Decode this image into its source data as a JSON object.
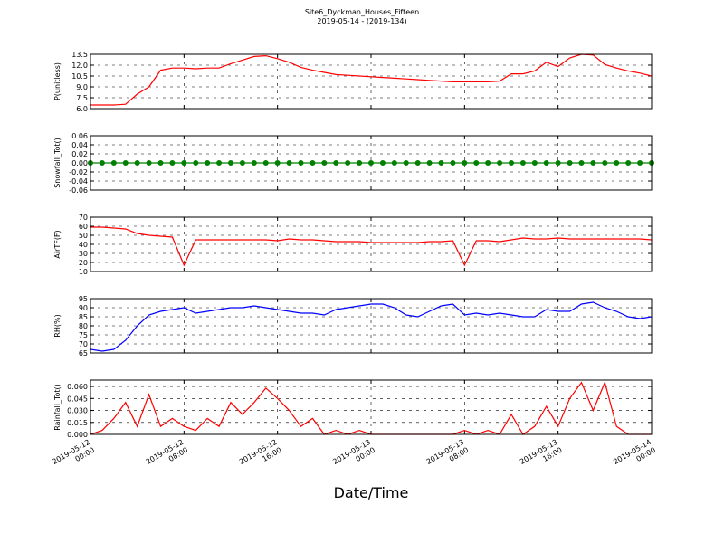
{
  "title": "Site6_Dyckman_Houses_Fifteen",
  "subtitle": "2019-05-14 - (2019-134)",
  "xlabel": "Date/Time",
  "chart_data": [
    {
      "type": "line",
      "ylabel": "P(unitless)",
      "grid": true,
      "xlim": [
        "2019-05-12 00:00",
        "2019-05-14 00:00"
      ],
      "xticks": [
        "2019-05-12 00:00",
        "2019-05-12 08:00",
        "2019-05-12 16:00",
        "2019-05-13 00:00",
        "2019-05-13 08:00",
        "2019-05-13 16:00",
        "2019-05-14 00:00"
      ],
      "ylim": [
        6,
        13.5
      ],
      "yticks": [
        {
          "value": 6,
          "label": "6.0"
        },
        {
          "value": 7.5,
          "label": "7.5"
        },
        {
          "value": 9,
          "label": "9.0"
        },
        {
          "value": 10.5,
          "label": "10.5"
        },
        {
          "value": 12,
          "label": "12.0"
        },
        {
          "value": 13.5,
          "label": "13.5"
        }
      ],
      "x": [
        "2019-05-12 00:00",
        "2019-05-12 01:00",
        "2019-05-12 02:00",
        "2019-05-12 03:00",
        "2019-05-12 04:00",
        "2019-05-12 05:00",
        "2019-05-12 06:00",
        "2019-05-12 07:00",
        "2019-05-12 08:00",
        "2019-05-12 09:00",
        "2019-05-12 10:00",
        "2019-05-12 11:00",
        "2019-05-12 12:00",
        "2019-05-12 13:00",
        "2019-05-12 14:00",
        "2019-05-12 15:00",
        "2019-05-12 16:00",
        "2019-05-12 17:00",
        "2019-05-12 18:00",
        "2019-05-12 19:00",
        "2019-05-12 20:00",
        "2019-05-12 21:00",
        "2019-05-12 22:00",
        "2019-05-12 23:00",
        "2019-05-13 00:00",
        "2019-05-13 01:00",
        "2019-05-13 02:00",
        "2019-05-13 03:00",
        "2019-05-13 04:00",
        "2019-05-13 05:00",
        "2019-05-13 06:00",
        "2019-05-13 07:00",
        "2019-05-13 08:00",
        "2019-05-13 09:00",
        "2019-05-13 10:00",
        "2019-05-13 11:00",
        "2019-05-13 12:00",
        "2019-05-13 13:00",
        "2019-05-13 14:00",
        "2019-05-13 15:00",
        "2019-05-13 16:00",
        "2019-05-13 17:00",
        "2019-05-13 18:00",
        "2019-05-13 19:00",
        "2019-05-13 20:00",
        "2019-05-13 21:00",
        "2019-05-13 22:00",
        "2019-05-13 23:00",
        "2019-05-14 00:00"
      ],
      "series": [
        {
          "color": "#ff0000",
          "values": [
            6.5,
            6.5,
            6.5,
            6.6,
            8.0,
            9.0,
            11.3,
            11.6,
            11.6,
            11.5,
            11.6,
            11.6,
            12.2,
            12.7,
            13.2,
            13.3,
            12.9,
            12.4,
            11.7,
            11.3,
            11.0,
            10.7,
            10.6,
            10.5,
            10.4,
            10.3,
            10.2,
            10.1,
            10.0,
            9.9,
            9.8,
            9.7,
            9.7,
            9.7,
            9.7,
            9.8,
            10.8,
            10.8,
            11.2,
            12.4,
            11.8,
            13.0,
            13.5,
            13.4,
            12.1,
            11.6,
            11.2,
            10.9,
            10.5
          ]
        }
      ]
    },
    {
      "type": "line",
      "ylabel": "Snowfall_Tot()",
      "grid": true,
      "xlim": [
        "2019-05-12 00:00",
        "2019-05-14 00:00"
      ],
      "xticks": [
        "2019-05-12 00:00",
        "2019-05-12 08:00",
        "2019-05-12 16:00",
        "2019-05-13 00:00",
        "2019-05-13 08:00",
        "2019-05-13 16:00",
        "2019-05-14 00:00"
      ],
      "ylim": [
        -0.06,
        0.06
      ],
      "yticks": [
        -0.06,
        -0.04,
        -0.02,
        {
          "value": 0,
          "label": "0.00"
        },
        0.02,
        0.04,
        0.06
      ],
      "x": [
        "2019-05-12 00:00",
        "2019-05-12 01:00",
        "2019-05-12 02:00",
        "2019-05-12 03:00",
        "2019-05-12 04:00",
        "2019-05-12 05:00",
        "2019-05-12 06:00",
        "2019-05-12 07:00",
        "2019-05-12 08:00",
        "2019-05-12 09:00",
        "2019-05-12 10:00",
        "2019-05-12 11:00",
        "2019-05-12 12:00",
        "2019-05-12 13:00",
        "2019-05-12 14:00",
        "2019-05-12 15:00",
        "2019-05-12 16:00",
        "2019-05-12 17:00",
        "2019-05-12 18:00",
        "2019-05-12 19:00",
        "2019-05-12 20:00",
        "2019-05-12 21:00",
        "2019-05-12 22:00",
        "2019-05-12 23:00",
        "2019-05-13 00:00",
        "2019-05-13 01:00",
        "2019-05-13 02:00",
        "2019-05-13 03:00",
        "2019-05-13 04:00",
        "2019-05-13 05:00",
        "2019-05-13 06:00",
        "2019-05-13 07:00",
        "2019-05-13 08:00",
        "2019-05-13 09:00",
        "2019-05-13 10:00",
        "2019-05-13 11:00",
        "2019-05-13 12:00",
        "2019-05-13 13:00",
        "2019-05-13 14:00",
        "2019-05-13 15:00",
        "2019-05-13 16:00",
        "2019-05-13 17:00",
        "2019-05-13 18:00",
        "2019-05-13 19:00",
        "2019-05-13 20:00",
        "2019-05-13 21:00",
        "2019-05-13 22:00",
        "2019-05-13 23:00",
        "2019-05-14 00:00"
      ],
      "series": [
        {
          "color": "#008000",
          "marker": true,
          "values": [
            0,
            0,
            0,
            0,
            0,
            0,
            0,
            0,
            0,
            0,
            0,
            0,
            0,
            0,
            0,
            0,
            0,
            0,
            0,
            0,
            0,
            0,
            0,
            0,
            0,
            0,
            0,
            0,
            0,
            0,
            0,
            0,
            0,
            0,
            0,
            0,
            0,
            0,
            0,
            0,
            0,
            0,
            0,
            0,
            0,
            0,
            0,
            0,
            0
          ]
        }
      ]
    },
    {
      "type": "line",
      "ylabel": "AirTF(F)",
      "grid": true,
      "xlim": [
        "2019-05-12 00:00",
        "2019-05-14 00:00"
      ],
      "xticks": [
        "2019-05-12 00:00",
        "2019-05-12 08:00",
        "2019-05-12 16:00",
        "2019-05-13 00:00",
        "2019-05-13 08:00",
        "2019-05-13 16:00",
        "2019-05-14 00:00"
      ],
      "ylim": [
        10,
        70
      ],
      "yticks": [
        10,
        20,
        30,
        40,
        50,
        60,
        70
      ],
      "x": [
        "2019-05-12 00:00",
        "2019-05-12 01:00",
        "2019-05-12 02:00",
        "2019-05-12 03:00",
        "2019-05-12 04:00",
        "2019-05-12 05:00",
        "2019-05-12 06:00",
        "2019-05-12 07:00",
        "2019-05-12 08:00",
        "2019-05-12 09:00",
        "2019-05-12 10:00",
        "2019-05-12 11:00",
        "2019-05-12 12:00",
        "2019-05-12 13:00",
        "2019-05-12 14:00",
        "2019-05-12 15:00",
        "2019-05-12 16:00",
        "2019-05-12 17:00",
        "2019-05-12 18:00",
        "2019-05-12 19:00",
        "2019-05-12 20:00",
        "2019-05-12 21:00",
        "2019-05-12 22:00",
        "2019-05-12 23:00",
        "2019-05-13 00:00",
        "2019-05-13 01:00",
        "2019-05-13 02:00",
        "2019-05-13 03:00",
        "2019-05-13 04:00",
        "2019-05-13 05:00",
        "2019-05-13 06:00",
        "2019-05-13 07:00",
        "2019-05-13 08:00",
        "2019-05-13 09:00",
        "2019-05-13 10:00",
        "2019-05-13 11:00",
        "2019-05-13 12:00",
        "2019-05-13 13:00",
        "2019-05-13 14:00",
        "2019-05-13 15:00",
        "2019-05-13 16:00",
        "2019-05-13 17:00",
        "2019-05-13 18:00",
        "2019-05-13 19:00",
        "2019-05-13 20:00",
        "2019-05-13 21:00",
        "2019-05-13 22:00",
        "2019-05-13 23:00",
        "2019-05-14 00:00"
      ],
      "series": [
        {
          "color": "#ff0000",
          "values": [
            59,
            59,
            58,
            57,
            52,
            50,
            49,
            48,
            17,
            45,
            45,
            45,
            45,
            45,
            45,
            45,
            44,
            46,
            45,
            45,
            44,
            43,
            43,
            43,
            42,
            42,
            42,
            42,
            42,
            43,
            43,
            44,
            17,
            44,
            44,
            43,
            45,
            47,
            46,
            46,
            47,
            46,
            46,
            46,
            46,
            46,
            46,
            46,
            45
          ]
        }
      ]
    },
    {
      "type": "line",
      "ylabel": "RH(%)",
      "grid": true,
      "xlim": [
        "2019-05-12 00:00",
        "2019-05-14 00:00"
      ],
      "xticks": [
        "2019-05-12 00:00",
        "2019-05-12 08:00",
        "2019-05-12 16:00",
        "2019-05-13 00:00",
        "2019-05-13 08:00",
        "2019-05-13 16:00",
        "2019-05-14 00:00"
      ],
      "ylim": [
        65,
        95
      ],
      "yticks": [
        65,
        70,
        75,
        80,
        85,
        90,
        95
      ],
      "x": [
        "2019-05-12 00:00",
        "2019-05-12 01:00",
        "2019-05-12 02:00",
        "2019-05-12 03:00",
        "2019-05-12 04:00",
        "2019-05-12 05:00",
        "2019-05-12 06:00",
        "2019-05-12 07:00",
        "2019-05-12 08:00",
        "2019-05-12 09:00",
        "2019-05-12 10:00",
        "2019-05-12 11:00",
        "2019-05-12 12:00",
        "2019-05-12 13:00",
        "2019-05-12 14:00",
        "2019-05-12 15:00",
        "2019-05-12 16:00",
        "2019-05-12 17:00",
        "2019-05-12 18:00",
        "2019-05-12 19:00",
        "2019-05-12 20:00",
        "2019-05-12 21:00",
        "2019-05-12 22:00",
        "2019-05-12 23:00",
        "2019-05-13 00:00",
        "2019-05-13 01:00",
        "2019-05-13 02:00",
        "2019-05-13 03:00",
        "2019-05-13 04:00",
        "2019-05-13 05:00",
        "2019-05-13 06:00",
        "2019-05-13 07:00",
        "2019-05-13 08:00",
        "2019-05-13 09:00",
        "2019-05-13 10:00",
        "2019-05-13 11:00",
        "2019-05-13 12:00",
        "2019-05-13 13:00",
        "2019-05-13 14:00",
        "2019-05-13 15:00",
        "2019-05-13 16:00",
        "2019-05-13 17:00",
        "2019-05-13 18:00",
        "2019-05-13 19:00",
        "2019-05-13 20:00",
        "2019-05-13 21:00",
        "2019-05-13 22:00",
        "2019-05-13 23:00",
        "2019-05-14 00:00"
      ],
      "series": [
        {
          "color": "#0000ff",
          "values": [
            67,
            66,
            67,
            72,
            80,
            86,
            88,
            89,
            90,
            87,
            88,
            89,
            90,
            90,
            91,
            90,
            89,
            88,
            87,
            87,
            86,
            89,
            90,
            91,
            92,
            92,
            90,
            86,
            85,
            88,
            91,
            92,
            86,
            87,
            86,
            87,
            86,
            85,
            85,
            89,
            88,
            88,
            92,
            93,
            90,
            88,
            85,
            84,
            85
          ]
        }
      ]
    },
    {
      "type": "line",
      "ylabel": "Rainfall_Tot()",
      "grid": true,
      "xlim": [
        "2019-05-12 00:00",
        "2019-05-14 00:00"
      ],
      "xticks": [
        "2019-05-12 00:00",
        "2019-05-12 08:00",
        "2019-05-12 16:00",
        "2019-05-13 00:00",
        "2019-05-13 08:00",
        "2019-05-13 16:00",
        "2019-05-14 00:00"
      ],
      "ylim": [
        0,
        0.068
      ],
      "yticks": [
        {
          "value": 0,
          "label": "0.000"
        },
        {
          "value": 0.015,
          "label": "0.015"
        },
        {
          "value": 0.03,
          "label": "0.030"
        },
        {
          "value": 0.045,
          "label": "0.045"
        },
        {
          "value": 0.06,
          "label": "0.060"
        }
      ],
      "x": [
        "2019-05-12 00:00",
        "2019-05-12 01:00",
        "2019-05-12 02:00",
        "2019-05-12 03:00",
        "2019-05-12 04:00",
        "2019-05-12 05:00",
        "2019-05-12 06:00",
        "2019-05-12 07:00",
        "2019-05-12 08:00",
        "2019-05-12 09:00",
        "2019-05-12 10:00",
        "2019-05-12 11:00",
        "2019-05-12 12:00",
        "2019-05-12 13:00",
        "2019-05-12 14:00",
        "2019-05-12 15:00",
        "2019-05-12 16:00",
        "2019-05-12 17:00",
        "2019-05-12 18:00",
        "2019-05-12 19:00",
        "2019-05-12 20:00",
        "2019-05-12 21:00",
        "2019-05-12 22:00",
        "2019-05-12 23:00",
        "2019-05-13 00:00",
        "2019-05-13 01:00",
        "2019-05-13 02:00",
        "2019-05-13 03:00",
        "2019-05-13 04:00",
        "2019-05-13 05:00",
        "2019-05-13 06:00",
        "2019-05-13 07:00",
        "2019-05-13 08:00",
        "2019-05-13 09:00",
        "2019-05-13 10:00",
        "2019-05-13 11:00",
        "2019-05-13 12:00",
        "2019-05-13 13:00",
        "2019-05-13 14:00",
        "2019-05-13 15:00",
        "2019-05-13 16:00",
        "2019-05-13 17:00",
        "2019-05-13 18:00",
        "2019-05-13 19:00",
        "2019-05-13 20:00",
        "2019-05-13 21:00",
        "2019-05-13 22:00",
        "2019-05-13 23:00",
        "2019-05-14 00:00"
      ],
      "series": [
        {
          "color": "#ff0000",
          "values": [
            0,
            0.005,
            0.02,
            0.04,
            0.01,
            0.05,
            0.01,
            0.02,
            0.01,
            0.005,
            0.02,
            0.01,
            0.04,
            0.025,
            0.04,
            0.058,
            0.045,
            0.03,
            0.01,
            0.02,
            0,
            0.005,
            0,
            0.005,
            0,
            0,
            0,
            0,
            0,
            0,
            0,
            0,
            0.005,
            0,
            0.005,
            0,
            0.025,
            0,
            0.01,
            0.035,
            0.01,
            0.045,
            0.065,
            0.03,
            0.065,
            0.01,
            0,
            0,
            0
          ]
        }
      ]
    }
  ]
}
